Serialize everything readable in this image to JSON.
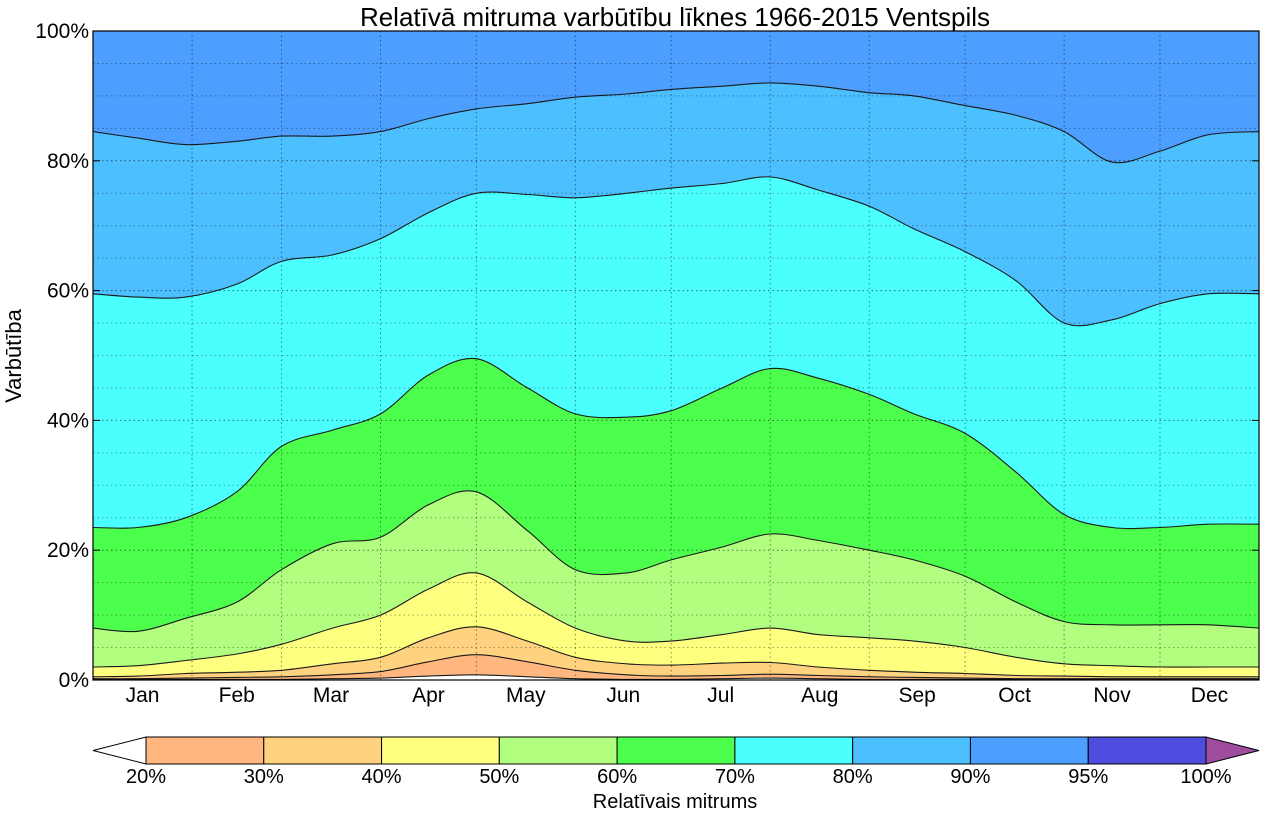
{
  "chart_data": {
    "type": "area",
    "title": "Relatīvā mitruma varbūtību līknes 1966-2015 Ventspils",
    "ylabel": "Varbūtība",
    "xlabel": "",
    "ylim": [
      0,
      100
    ],
    "y_ticks": [
      "0%",
      "20%",
      "40%",
      "60%",
      "80%",
      "100%"
    ],
    "x_ticks": [
      "Jan",
      "Feb",
      "Mar",
      "Apr",
      "May",
      "Jun",
      "Jul",
      "Aug",
      "Sep",
      "Oct",
      "Nov",
      "Dec"
    ],
    "grid": true,
    "x_unit": "day of year",
    "xlim": [
      1,
      366
    ],
    "x": [
      1,
      15,
      30,
      46,
      60,
      76,
      91,
      106,
      121,
      137,
      152,
      168,
      182,
      198,
      213,
      228,
      244,
      258,
      274,
      290,
      305,
      320,
      335,
      350,
      366
    ],
    "series": [
      {
        "threshold": "20%",
        "values": [
          0.1,
          0.1,
          0.1,
          0.1,
          0.1,
          0.2,
          0.3,
          0.6,
          0.8,
          0.5,
          0.2,
          0.1,
          0.1,
          0.2,
          0.3,
          0.2,
          0.1,
          0.1,
          0.1,
          0.1,
          0.1,
          0.1,
          0.1,
          0.1,
          0.1
        ]
      },
      {
        "threshold": "30%",
        "values": [
          0.2,
          0.2,
          0.3,
          0.4,
          0.5,
          0.8,
          1.3,
          2.8,
          3.9,
          2.8,
          1.5,
          0.8,
          0.6,
          0.7,
          0.9,
          0.7,
          0.5,
          0.4,
          0.3,
          0.2,
          0.2,
          0.2,
          0.2,
          0.2,
          0.2
        ]
      },
      {
        "threshold": "40%",
        "values": [
          0.5,
          0.6,
          1.0,
          1.2,
          1.5,
          2.5,
          3.5,
          6.5,
          8.2,
          6.0,
          3.5,
          2.5,
          2.3,
          2.6,
          2.7,
          2.0,
          1.5,
          1.2,
          1.0,
          0.7,
          0.6,
          0.5,
          0.5,
          0.5,
          0.5
        ]
      },
      {
        "threshold": "50%",
        "values": [
          2.0,
          2.2,
          3.0,
          4.0,
          5.5,
          8.0,
          10.0,
          14.0,
          16.5,
          12.0,
          8.0,
          6.0,
          6.0,
          7.0,
          8.0,
          7.0,
          6.5,
          6.0,
          5.0,
          3.5,
          2.5,
          2.2,
          2.0,
          2.0,
          2.0
        ]
      },
      {
        "threshold": "60%",
        "values": [
          8.0,
          7.5,
          9.5,
          12.0,
          17.0,
          21.0,
          22.0,
          27.0,
          29.0,
          23.0,
          17.0,
          16.5,
          18.5,
          20.5,
          22.5,
          21.5,
          20.0,
          18.5,
          16.0,
          12.0,
          9.0,
          8.5,
          8.5,
          8.5,
          8.0
        ]
      },
      {
        "threshold": "70%",
        "values": [
          23.5,
          23.5,
          25.0,
          29.0,
          36.0,
          38.5,
          41.0,
          47.0,
          49.5,
          45.0,
          41.0,
          40.5,
          41.5,
          45.0,
          48.0,
          46.5,
          44.0,
          41.0,
          38.0,
          32.0,
          25.5,
          23.5,
          23.5,
          24.0,
          24.0
        ]
      },
      {
        "threshold": "80%",
        "values": [
          59.5,
          59.0,
          59.0,
          61.0,
          64.5,
          65.5,
          68.0,
          72.0,
          75.0,
          74.8,
          74.3,
          75.0,
          75.8,
          76.5,
          77.5,
          75.5,
          73.0,
          69.5,
          66.0,
          61.5,
          55.0,
          55.5,
          58.0,
          59.5,
          59.5
        ]
      },
      {
        "threshold": "90%",
        "values": [
          84.5,
          83.5,
          82.5,
          83.0,
          83.8,
          83.8,
          84.5,
          86.5,
          88.0,
          88.8,
          89.8,
          90.3,
          91.0,
          91.5,
          92.0,
          91.5,
          90.5,
          90.0,
          88.5,
          87.0,
          84.5,
          79.8,
          81.5,
          84.0,
          84.5
        ]
      }
    ],
    "colorbar": {
      "label": "Relatīvais mitrums",
      "ticks": [
        "20%",
        "30%",
        "40%",
        "50%",
        "60%",
        "70%",
        "80%",
        "90%",
        "95%",
        "100%"
      ],
      "colors": [
        "#ffffff",
        "#ffb77f",
        "#ffd27f",
        "#ffff7f",
        "#b2ff7f",
        "#4cff4c",
        "#4cffff",
        "#4cbfff",
        "#4c9fff",
        "#4c4cdf",
        "#9f4c9f"
      ]
    }
  }
}
